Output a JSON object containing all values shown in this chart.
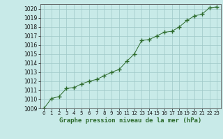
{
  "title": "Graphe pression niveau de la mer (hPa)",
  "x_values": [
    0,
    1,
    2,
    3,
    4,
    5,
    6,
    7,
    8,
    9,
    10,
    11,
    12,
    13,
    14,
    15,
    16,
    17,
    18,
    19,
    20,
    21,
    22,
    23
  ],
  "y_values": [
    1009.0,
    1010.1,
    1010.3,
    1011.2,
    1011.3,
    1011.7,
    1012.0,
    1012.2,
    1012.6,
    1013.0,
    1013.3,
    1014.2,
    1015.0,
    1016.5,
    1016.6,
    1017.0,
    1017.4,
    1017.5,
    1018.0,
    1018.7,
    1019.2,
    1019.4,
    1020.1,
    1020.2
  ],
  "ylim": [
    1009,
    1020.5
  ],
  "xlim": [
    -0.5,
    23.5
  ],
  "yticks": [
    1009,
    1010,
    1011,
    1012,
    1013,
    1014,
    1015,
    1016,
    1017,
    1018,
    1019,
    1020
  ],
  "xticks": [
    0,
    1,
    2,
    3,
    4,
    5,
    6,
    7,
    8,
    9,
    10,
    11,
    12,
    13,
    14,
    15,
    16,
    17,
    18,
    19,
    20,
    21,
    22,
    23
  ],
  "line_color": "#2d6b2d",
  "marker_color": "#2d6b2d",
  "bg_color": "#c8eae8",
  "grid_color": "#9fc8c8",
  "title_color": "#2d6b2d",
  "title_fontsize": 6.5,
  "tick_fontsize": 5.5,
  "tick_fontsize_x": 5.0
}
